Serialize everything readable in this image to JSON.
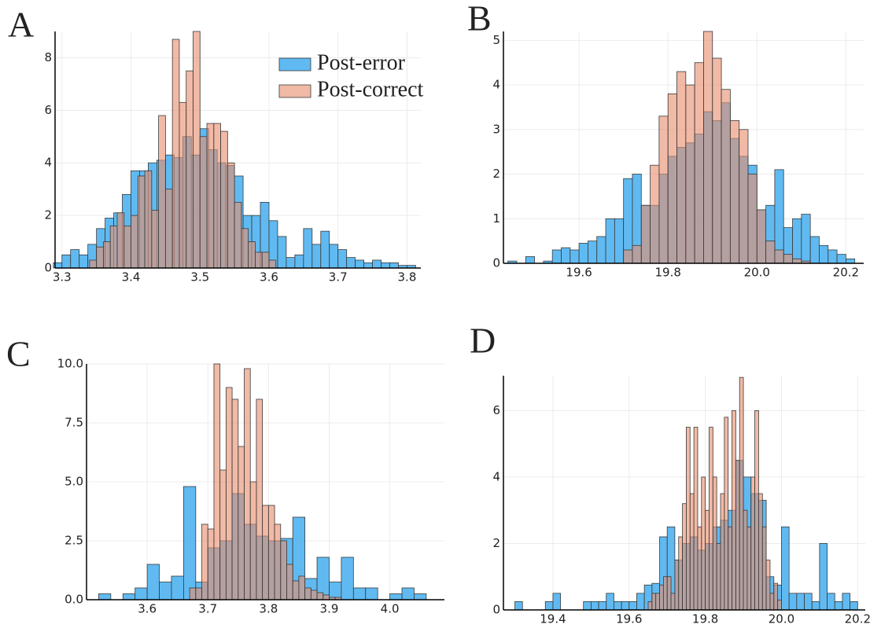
{
  "chart_data": [
    {
      "type": "histogram",
      "panel_label": "A",
      "legend": "top right",
      "grid": true,
      "xlim": [
        3.29,
        3.82
      ],
      "ylim": [
        0,
        9
      ],
      "xticks": [
        3.3,
        3.4,
        3.5,
        3.6,
        3.7,
        3.8
      ],
      "yticks": [
        0,
        2,
        4,
        6,
        8
      ],
      "series": [
        {
          "name": "Post-error",
          "color": "#4fb3ef",
          "bins": [
            3.2875,
            3.3,
            3.3125,
            3.325,
            3.3375,
            3.35,
            3.3625,
            3.375,
            3.3875,
            3.4,
            3.4125,
            3.425,
            3.4375,
            3.45,
            3.4625,
            3.475,
            3.4875,
            3.5,
            3.5125,
            3.525,
            3.5375,
            3.55,
            3.5625,
            3.575,
            3.5875,
            3.6,
            3.6125,
            3.625,
            3.6375,
            3.65,
            3.6625,
            3.675,
            3.6875,
            3.7,
            3.7125,
            3.725,
            3.7375,
            3.75,
            3.7625,
            3.775,
            3.7875,
            3.8,
            3.8125
          ],
          "values": [
            0.2,
            0.5,
            0.7,
            0.5,
            0.9,
            1.5,
            1.9,
            2.1,
            2.8,
            3.7,
            3.7,
            4.0,
            4.1,
            4.3,
            4.2,
            5.0,
            4.3,
            5.3,
            4.5,
            4.0,
            3.9,
            3.5,
            2.0,
            2.0,
            2.5,
            1.8,
            1.2,
            0.4,
            0.5,
            1.5,
            0.9,
            1.4,
            0.9,
            0.7,
            0.4,
            0.3,
            0.2,
            0.3,
            0.2,
            0.2,
            0.1,
            0.1
          ]
        },
        {
          "name": "Post-correct",
          "color": "#e8906f",
          "bins": [
            3.34,
            3.35,
            3.36,
            3.37,
            3.38,
            3.39,
            3.4,
            3.41,
            3.42,
            3.43,
            3.44,
            3.45,
            3.46,
            3.47,
            3.48,
            3.49,
            3.5,
            3.51,
            3.52,
            3.53,
            3.54,
            3.55,
            3.56,
            3.57,
            3.58,
            3.59,
            3.6,
            3.61
          ],
          "values": [
            0.3,
            0.8,
            1.0,
            1.6,
            2.1,
            1.6,
            2.0,
            3.5,
            3.7,
            2.2,
            5.8,
            3.0,
            8.7,
            6.3,
            7.5,
            9.0,
            5.0,
            5.5,
            5.5,
            5.2,
            4.0,
            2.5,
            1.5,
            1.0,
            0.6,
            0.6,
            0.3
          ]
        }
      ]
    },
    {
      "type": "histogram",
      "panel_label": "B",
      "grid": true,
      "xlim": [
        19.43,
        20.24
      ],
      "ylim": [
        0,
        5.2
      ],
      "xticks": [
        {
          "value": 19.6,
          "label": "19.6"
        },
        {
          "value": 19.8,
          "label": "19.8"
        },
        {
          "value": 20.0,
          "label": "20.0"
        },
        {
          "value": 20.2,
          "label": "20.2"
        }
      ],
      "yticks": [
        0,
        1,
        2,
        3,
        4,
        5
      ],
      "series": [
        {
          "name": "Post-error",
          "color": "#4fb3ef",
          "bins": [
            19.44,
            19.46,
            19.48,
            19.5,
            19.52,
            19.54,
            19.56,
            19.58,
            19.6,
            19.62,
            19.64,
            19.66,
            19.68,
            19.7,
            19.72,
            19.74,
            19.76,
            19.78,
            19.8,
            19.82,
            19.84,
            19.86,
            19.88,
            19.9,
            19.92,
            19.94,
            19.96,
            19.98,
            20.0,
            20.02,
            20.04,
            20.06,
            20.08,
            20.1,
            20.12,
            20.14,
            20.16,
            20.18,
            20.2,
            20.22
          ],
          "values": [
            0.05,
            0,
            0.15,
            0,
            0.05,
            0.3,
            0.35,
            0.3,
            0.45,
            0.5,
            0.6,
            1.0,
            1.0,
            1.9,
            2.0,
            1.3,
            1.3,
            2.0,
            2.4,
            2.6,
            2.7,
            2.9,
            3.4,
            3.2,
            3.6,
            2.8,
            2.4,
            2.2,
            1.2,
            1.3,
            2.1,
            0.8,
            1.0,
            1.1,
            0.6,
            0.4,
            0.3,
            0.2,
            0.1
          ]
        },
        {
          "name": "Post-correct",
          "color": "#e8906f",
          "bins": [
            19.7,
            19.72,
            19.74,
            19.76,
            19.78,
            19.8,
            19.82,
            19.84,
            19.86,
            19.88,
            19.9,
            19.92,
            19.94,
            19.96,
            19.98,
            20.0,
            20.02,
            20.04,
            20.06,
            20.08,
            20.1,
            20.12
          ],
          "values": [
            0.3,
            0.4,
            1.3,
            2.2,
            3.3,
            3.8,
            4.3,
            4.0,
            4.5,
            5.2,
            4.6,
            3.9,
            3.2,
            3.0,
            2.0,
            1.2,
            0.5,
            0.3,
            0.2,
            0.1,
            0.05
          ]
        }
      ]
    },
    {
      "type": "histogram",
      "panel_label": "C",
      "grid": true,
      "xlim": [
        3.5,
        4.09
      ],
      "ylim": [
        0,
        10
      ],
      "xticks": [
        3.6,
        3.7,
        3.8,
        3.9,
        {
          "value": 4.0,
          "label": "4.0"
        }
      ],
      "yticks": [
        {
          "value": 0,
          "label": "0.0"
        },
        2.5,
        {
          "value": 5,
          "label": "5.0"
        },
        7.5,
        {
          "value": 10,
          "label": "10.0"
        }
      ],
      "series": [
        {
          "name": "Post-error",
          "color": "#4fb3ef",
          "bins": [
            3.52,
            3.54,
            3.56,
            3.58,
            3.6,
            3.62,
            3.64,
            3.66,
            3.68,
            3.7,
            3.72,
            3.74,
            3.76,
            3.78,
            3.8,
            3.82,
            3.84,
            3.86,
            3.88,
            3.9,
            3.92,
            3.94,
            3.96,
            3.98,
            4.0,
            4.02,
            4.04,
            4.06,
            4.08
          ],
          "values": [
            0.25,
            0,
            0.25,
            0.5,
            1.5,
            0.75,
            1.0,
            4.8,
            0.75,
            2.2,
            2.5,
            4.5,
            3.2,
            2.7,
            2.5,
            2.6,
            3.5,
            0.9,
            1.8,
            0.75,
            1.8,
            0.5,
            0.5,
            0,
            0.25,
            0.5,
            0.25,
            0
          ]
        },
        {
          "name": "Post-correct",
          "color": "#e8906f",
          "bins": [
            3.67,
            3.68,
            3.69,
            3.7,
            3.71,
            3.72,
            3.73,
            3.74,
            3.75,
            3.76,
            3.77,
            3.78,
            3.79,
            3.8,
            3.81,
            3.82,
            3.83,
            3.84,
            3.85,
            3.86,
            3.87,
            3.88,
            3.89,
            3.9,
            3.91,
            3.92
          ],
          "values": [
            0.5,
            0.5,
            3.2,
            3.0,
            10.0,
            5.5,
            9.0,
            8.5,
            6.5,
            9.8,
            5.0,
            8.5,
            4.0,
            4.0,
            3.2,
            2.5,
            1.5,
            0.8,
            1.0,
            0.5,
            0.4,
            0.3,
            0.2,
            0.1,
            0.1
          ]
        }
      ]
    },
    {
      "type": "histogram",
      "panel_label": "D",
      "grid": true,
      "xlim": [
        19.27,
        20.22
      ],
      "ylim": [
        0,
        7.05
      ],
      "xticks": [
        19.4,
        19.6,
        19.8,
        {
          "value": 20.0,
          "label": "20.0"
        },
        20.2
      ],
      "yticks": [
        0,
        2,
        4,
        6
      ],
      "series": [
        {
          "name": "Post-error",
          "color": "#4fb3ef",
          "bins": [
            19.3,
            19.32,
            19.34,
            19.36,
            19.38,
            19.4,
            19.42,
            19.44,
            19.46,
            19.48,
            19.5,
            19.52,
            19.54,
            19.56,
            19.58,
            19.6,
            19.62,
            19.64,
            19.66,
            19.68,
            19.7,
            19.72,
            19.74,
            19.76,
            19.78,
            19.8,
            19.82,
            19.84,
            19.86,
            19.88,
            19.9,
            19.92,
            19.94,
            19.96,
            19.98,
            20.0,
            20.02,
            20.04,
            20.06,
            20.08,
            20.1,
            20.12,
            20.14,
            20.16,
            20.18,
            20.2
          ],
          "values": [
            0.25,
            0,
            0,
            0,
            0.25,
            0.5,
            0,
            0,
            0,
            0.25,
            0.25,
            0.25,
            0.5,
            0.25,
            0.25,
            0.25,
            0.5,
            0.75,
            0.8,
            2.2,
            2.5,
            1.5,
            2.0,
            2.2,
            1.8,
            2.0,
            2.5,
            2.7,
            3.0,
            4.5,
            4.0,
            3.5,
            3.3,
            1.0,
            0.75,
            2.5,
            0.5,
            0.5,
            0.5,
            0.25,
            2.0,
            0.5,
            0.25,
            0.5,
            0.25
          ]
        },
        {
          "name": "Post-correct",
          "color": "#e8906f",
          "bins": [
            19.65,
            19.66,
            19.67,
            19.68,
            19.69,
            19.7,
            19.71,
            19.72,
            19.73,
            19.74,
            19.75,
            19.76,
            19.77,
            19.78,
            19.79,
            19.8,
            19.81,
            19.82,
            19.83,
            19.84,
            19.85,
            19.86,
            19.87,
            19.88,
            19.89,
            19.9,
            19.91,
            19.92,
            19.93,
            19.94,
            19.95,
            19.96,
            19.97,
            19.98,
            19.99,
            20.0
          ],
          "values": [
            0.25,
            0.5,
            0.5,
            0.75,
            1.0,
            1.0,
            0.5,
            1.5,
            2.2,
            3.2,
            5.5,
            3.5,
            5.5,
            2.5,
            4.0,
            3.0,
            5.5,
            4.0,
            2.0,
            3.5,
            5.8,
            2.5,
            6.0,
            4.5,
            7.0,
            3.0,
            2.5,
            4.0,
            6.0,
            3.5,
            2.5,
            1.5,
            0.5,
            0.8,
            0.3
          ]
        }
      ]
    }
  ]
}
